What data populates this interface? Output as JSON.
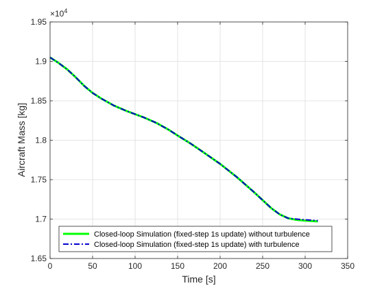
{
  "chart_data": {
    "type": "line",
    "xlabel": "Time [s]",
    "ylabel": "Aircraft Mass [kg]",
    "y_exponent": "×10",
    "y_exponent_power": "4",
    "xlim": [
      0,
      350
    ],
    "ylim": [
      1.65,
      1.95
    ],
    "xticks": [
      "0",
      "50",
      "100",
      "150",
      "200",
      "250",
      "300",
      "350"
    ],
    "yticks": [
      "1.65",
      "1.7",
      "1.75",
      "1.8",
      "1.85",
      "1.9",
      "1.95"
    ],
    "grid": true,
    "legend_location": "bottom-left",
    "series": [
      {
        "name": "Closed-loop Simulation (fixed-step 1s update) without turbulence",
        "color": "#00ff00",
        "style": "solid",
        "x": [
          0,
          10,
          20,
          30,
          40,
          50,
          60,
          75,
          90,
          100,
          110,
          125,
          140,
          150,
          165,
          180,
          200,
          220,
          240,
          250,
          260,
          270,
          280,
          290,
          300,
          315
        ],
        "y": [
          1.905,
          1.898,
          1.89,
          1.88,
          1.869,
          1.86,
          1.853,
          1.844,
          1.837,
          1.833,
          1.829,
          1.822,
          1.813,
          1.806,
          1.796,
          1.785,
          1.77,
          1.753,
          1.734,
          1.724,
          1.714,
          1.706,
          1.701,
          1.699,
          1.698,
          1.697
        ]
      },
      {
        "name": "Closed-loop Simulation (fixed-step 1s update) with turbulence",
        "color": "#0000cc",
        "style": "dashdot",
        "x": [
          0,
          10,
          20,
          30,
          40,
          50,
          60,
          75,
          90,
          100,
          110,
          125,
          140,
          150,
          165,
          180,
          200,
          220,
          240,
          250,
          260,
          270,
          280,
          290,
          300,
          315
        ],
        "y": [
          1.905,
          1.898,
          1.89,
          1.88,
          1.869,
          1.86,
          1.853,
          1.844,
          1.837,
          1.833,
          1.829,
          1.822,
          1.813,
          1.806,
          1.796,
          1.785,
          1.77,
          1.753,
          1.734,
          1.724,
          1.714,
          1.706,
          1.701,
          1.7,
          1.699,
          1.698
        ]
      }
    ]
  }
}
